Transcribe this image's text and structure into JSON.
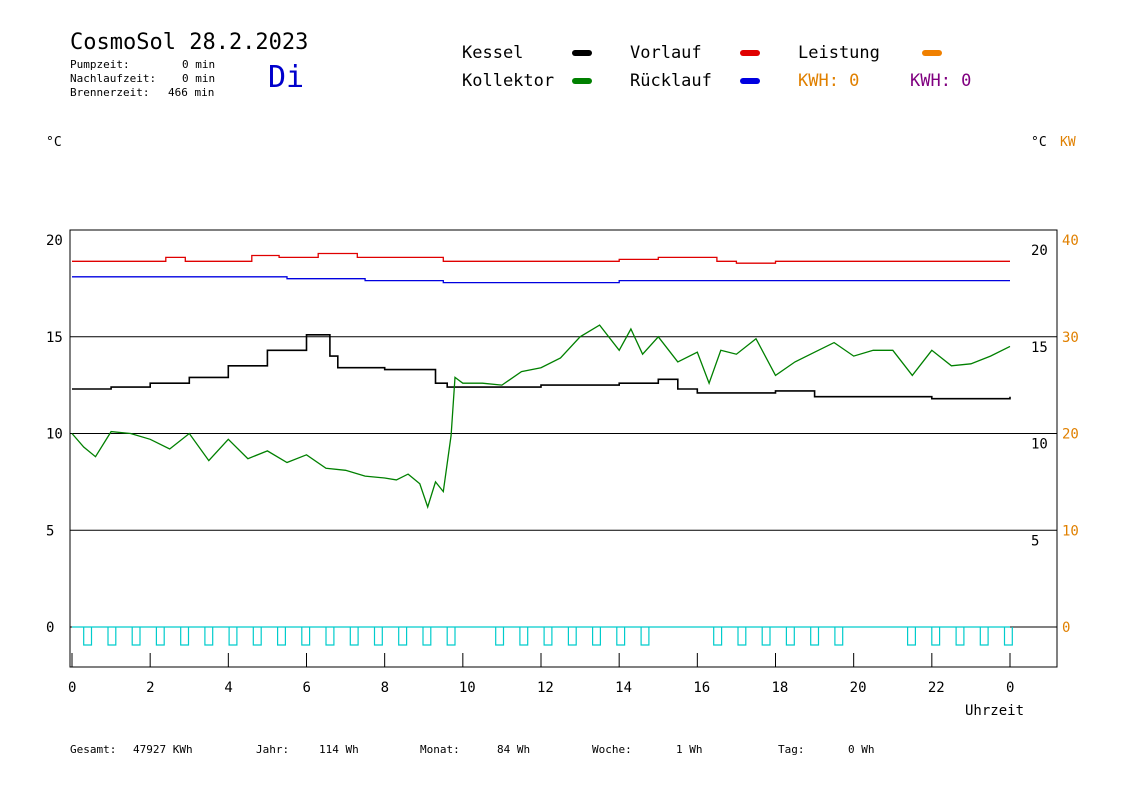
{
  "header": {
    "title": "CosmoSol 28.2.2023",
    "day": "Di",
    "stats": [
      {
        "label": "Pumpzeit:",
        "value": "0 min"
      },
      {
        "label": "Nachlaufzeit:",
        "value": "0 min"
      },
      {
        "label": "Brennerzeit:",
        "value": "466 min"
      }
    ]
  },
  "legend": {
    "kessel": {
      "label": "Kessel",
      "color": "#000000"
    },
    "kollektor": {
      "label": "Kollektor",
      "color": "#008000"
    },
    "vorlauf": {
      "label": "Vorlauf",
      "color": "#e00000"
    },
    "ruecklauf": {
      "label": "Rücklauf",
      "color": "#0000e0"
    },
    "leistung": {
      "label": "Leistung",
      "color": "#f08000"
    },
    "kwh1": "KWH: 0",
    "kwh1_color": "#e08000",
    "kwh2": "KWH: 0",
    "kwh2_color": "#800080"
  },
  "units": {
    "left": "°C",
    "right_c": "°C",
    "right_kw": "KW"
  },
  "footer": {
    "gesamt_label": "Gesamt:",
    "gesamt_value": "47927 KWh",
    "jahr_label": "Jahr:",
    "jahr_value": "114 Wh",
    "monat_label": "Monat:",
    "monat_value": "84 Wh",
    "woche_label": "Woche:",
    "woche_value": "1 Wh",
    "tag_label": "Tag:",
    "tag_value": "0 Wh"
  },
  "chart_data": {
    "type": "line",
    "xlabel": "Uhrzeit",
    "x_ticks": [
      "0",
      "2",
      "4",
      "6",
      "8",
      "10",
      "12",
      "14",
      "16",
      "18",
      "20",
      "22",
      "0"
    ],
    "xlim": [
      0,
      24
    ],
    "ylim_left": [
      -2,
      21
    ],
    "y_ticks_left": [
      "20",
      "15",
      "10",
      "5",
      "0"
    ],
    "y_ticks_left_values": [
      20,
      15,
      10,
      5,
      0
    ],
    "y_ticks_right_c": [
      "20",
      "15",
      "10",
      "5"
    ],
    "y_ticks_right_c_values": [
      20,
      15,
      10,
      5
    ],
    "y_ticks_right_kw": [
      "40",
      "30",
      "20",
      "10",
      "0"
    ],
    "y_ticks_right_kw_values": [
      40,
      30,
      20,
      10,
      0
    ],
    "gridlines_y": [
      20,
      15,
      10,
      5,
      0
    ],
    "series": [
      {
        "name": "Vorlauf",
        "color": "#e00000",
        "x": [
          0,
          2.3,
          2.4,
          2.9,
          4.6,
          5.3,
          6.3,
          6.6,
          7.3,
          8.6,
          9.5,
          10.5,
          13.0,
          14.0,
          15.0,
          16.5,
          17.0,
          18.0,
          20.0,
          24.0
        ],
        "y": [
          18.9,
          18.9,
          19.1,
          18.9,
          19.2,
          19.1,
          19.3,
          19.3,
          19.1,
          19.1,
          18.9,
          18.9,
          18.9,
          19.0,
          19.1,
          18.9,
          18.8,
          18.9,
          18.9,
          18.9
        ]
      },
      {
        "name": "Rücklauf",
        "color": "#0000e0",
        "x": [
          0,
          1.4,
          4.6,
          5.5,
          7.5,
          9.5,
          11.0,
          14.0,
          16.0,
          18.0,
          20.0,
          22.0,
          24.0
        ],
        "y": [
          18.1,
          18.1,
          18.1,
          18.0,
          17.9,
          17.8,
          17.8,
          17.9,
          17.9,
          17.9,
          17.9,
          17.9,
          17.9
        ]
      },
      {
        "name": "Kessel",
        "color": "#000000",
        "x": [
          0,
          1,
          2,
          3,
          4,
          5,
          6,
          6.5,
          6.6,
          6.8,
          7.5,
          8.0,
          9.0,
          9.3,
          9.6,
          10.0,
          11.0,
          12.0,
          13.0,
          14.0,
          15.0,
          15.5,
          16.0,
          17.0,
          18.0,
          18.5,
          19.0,
          20.0,
          22.0,
          23.0,
          24.0
        ],
        "y": [
          12.3,
          12.4,
          12.6,
          12.9,
          13.5,
          14.3,
          15.1,
          15.1,
          14.0,
          13.4,
          13.4,
          13.3,
          13.3,
          12.6,
          12.4,
          12.4,
          12.4,
          12.5,
          12.5,
          12.6,
          12.8,
          12.3,
          12.1,
          12.1,
          12.2,
          12.2,
          11.9,
          11.9,
          11.8,
          11.8,
          11.9
        ]
      },
      {
        "name": "Kollektor",
        "color": "#008000",
        "x": [
          0,
          0.3,
          0.6,
          1.0,
          1.5,
          2.0,
          2.5,
          3.0,
          3.5,
          4.0,
          4.5,
          5.0,
          5.5,
          6.0,
          6.5,
          7.0,
          7.5,
          8.0,
          8.3,
          8.6,
          8.9,
          9.1,
          9.3,
          9.5,
          9.7,
          9.8,
          10.0,
          10.5,
          11.0,
          11.5,
          12.0,
          12.5,
          13.0,
          13.5,
          14.0,
          14.3,
          14.6,
          15.0,
          15.5,
          16.0,
          16.3,
          16.6,
          17.0,
          17.5,
          18.0,
          18.5,
          19.0,
          19.5,
          20.0,
          20.5,
          21.0,
          21.5,
          22.0,
          22.5,
          23.0,
          23.5,
          24.0
        ],
        "y": [
          10.0,
          9.3,
          8.8,
          10.1,
          10.0,
          9.7,
          9.2,
          10.0,
          8.6,
          9.7,
          8.7,
          9.1,
          8.5,
          8.9,
          8.2,
          8.1,
          7.8,
          7.7,
          7.6,
          7.9,
          7.4,
          6.2,
          7.5,
          7.0,
          9.9,
          12.9,
          12.6,
          12.6,
          12.5,
          13.2,
          13.4,
          13.9,
          15.0,
          15.6,
          14.3,
          15.4,
          14.1,
          15.0,
          13.7,
          14.2,
          12.6,
          14.3,
          14.1,
          14.9,
          13.0,
          13.7,
          14.2,
          14.7,
          14.0,
          14.3,
          14.3,
          13.0,
          14.3,
          13.5,
          13.6,
          14.0,
          14.5
        ]
      },
      {
        "name": "Pumpe",
        "color": "#00cccc",
        "x": [
          0,
          24
        ],
        "y": [
          0,
          0
        ]
      }
    ]
  }
}
